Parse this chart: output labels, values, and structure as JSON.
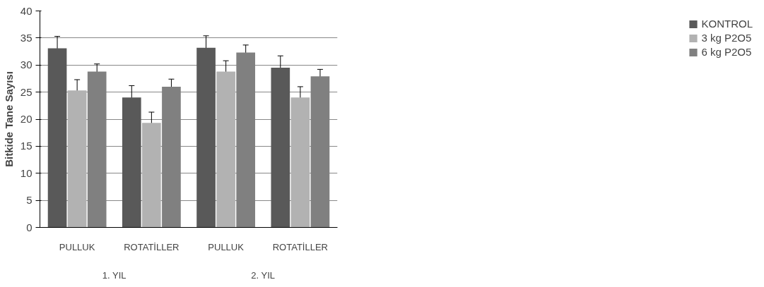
{
  "chart_data": {
    "type": "bar",
    "ylabel": "Bitkide Tane Sayısı",
    "categories": [
      "PULLUK",
      "ROTATİLLER",
      "PULLUK",
      "ROTATİLLER"
    ],
    "annotations": [
      "1. YIL",
      "2. YIL"
    ],
    "series": [
      {
        "name": "KONTROL",
        "color": "#595959",
        "values": [
          33.1,
          24.0,
          33.2,
          29.5
        ],
        "errors": [
          2.2,
          2.2,
          2.2,
          2.2
        ]
      },
      {
        "name": "3 kg P2O5",
        "color": "#b2b2b2",
        "values": [
          25.3,
          19.3,
          28.8,
          24.0
        ],
        "errors": [
          2.0,
          2.0,
          2.0,
          2.0
        ]
      },
      {
        "name": "6 kg P2O5",
        "color": "#808080",
        "values": [
          28.8,
          26.0,
          32.3,
          27.9
        ],
        "errors": [
          1.4,
          1.4,
          1.4,
          1.3
        ]
      }
    ],
    "ylim": [
      0,
      40
    ],
    "yticks": [
      0,
      5,
      10,
      15,
      20,
      25,
      30,
      35,
      40
    ],
    "grid": "y",
    "legend": "right"
  }
}
